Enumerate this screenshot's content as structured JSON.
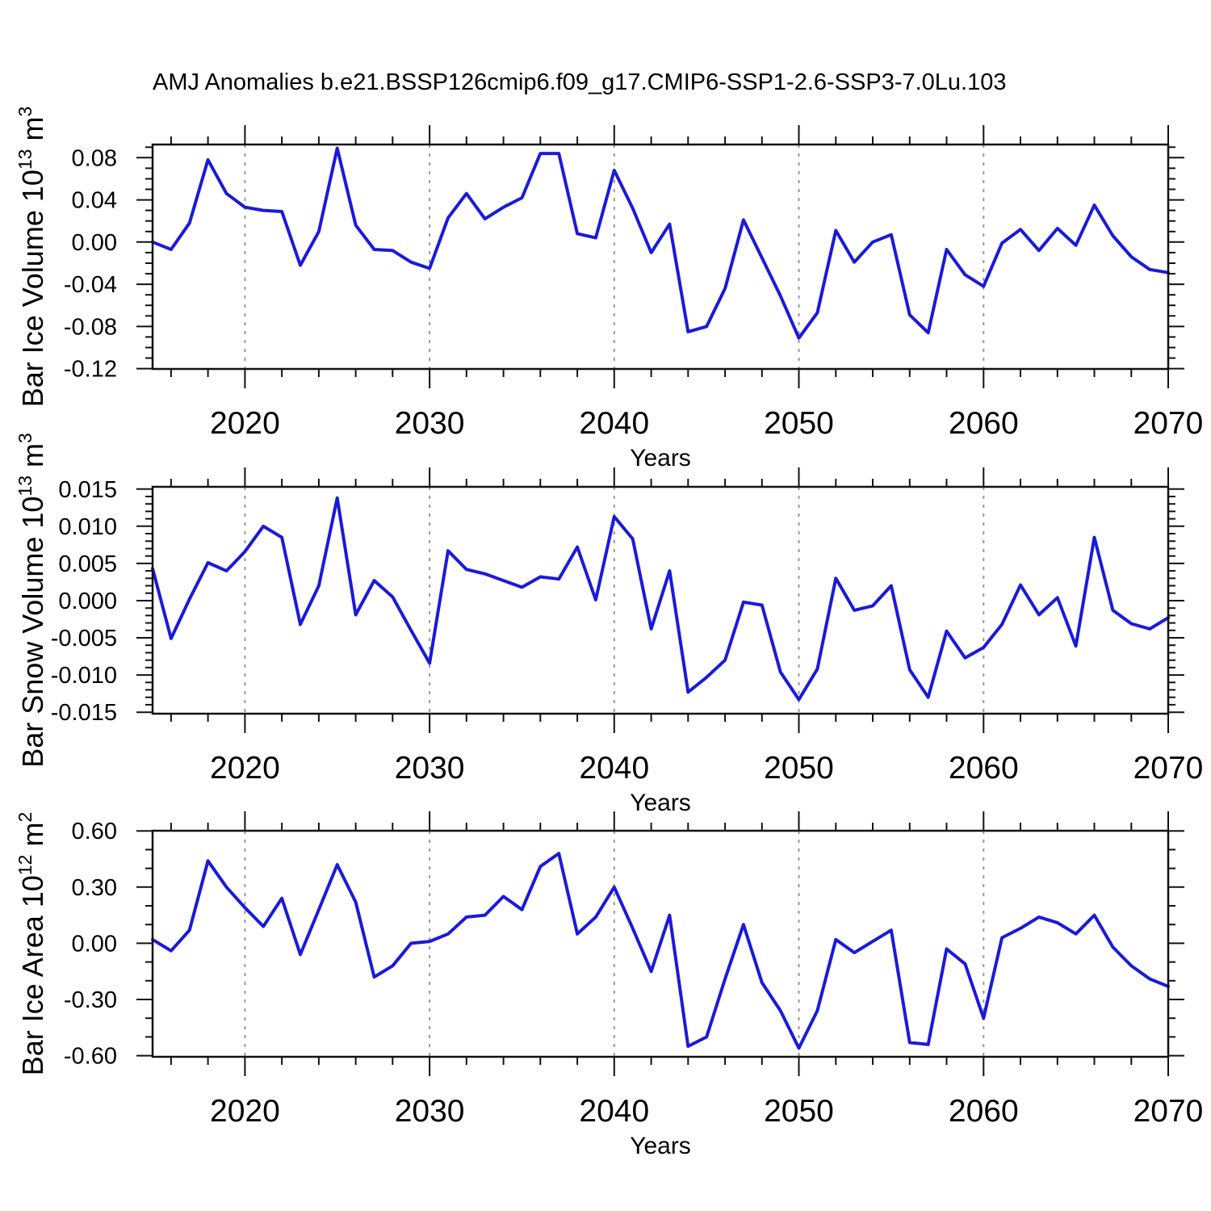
{
  "title": "AMJ Anomalies b.e21.BSSP126cmip6.f09_g17.CMIP6-SSP1-2.6-SSP3-7.0Lu.103",
  "years": [
    2015,
    2016,
    2017,
    2018,
    2019,
    2020,
    2021,
    2022,
    2023,
    2024,
    2025,
    2026,
    2027,
    2028,
    2029,
    2030,
    2031,
    2032,
    2033,
    2034,
    2035,
    2036,
    2037,
    2038,
    2039,
    2040,
    2041,
    2042,
    2043,
    2044,
    2045,
    2046,
    2047,
    2048,
    2049,
    2050,
    2051,
    2052,
    2053,
    2054,
    2055,
    2056,
    2057,
    2058,
    2059,
    2060,
    2061,
    2062,
    2063,
    2064,
    2065,
    2066,
    2067,
    2068,
    2069,
    2070
  ],
  "chart_data": [
    {
      "type": "line",
      "name": "bar-ice-volume",
      "title": "",
      "xlabel": "Years",
      "ylabel_text": "Bar Ice Volume 10^13 m^3",
      "ylabel_parts": {
        "pre": "Bar Ice Volume 10",
        "sup": "13",
        "mid": " m",
        "sup2": "3"
      },
      "xlim": [
        2015,
        2070
      ],
      "ylim": [
        -0.1203,
        0.0925
      ],
      "x_tick_labels": [
        "2020",
        "2030",
        "2040",
        "2050",
        "2060",
        "2070"
      ],
      "x_tick_values": [
        2020,
        2030,
        2040,
        2050,
        2060,
        2070
      ],
      "grid_years": [
        2020,
        2030,
        2040,
        2050,
        2060
      ],
      "y_tick_labels": [
        "0.08",
        "0.04",
        "0.00",
        "-0.04",
        "-0.08",
        "-0.12"
      ],
      "y_tick_values": [
        0.08,
        0.04,
        0.0,
        -0.04,
        -0.08,
        -0.12
      ],
      "y_minor_step": 0.01,
      "x_minor_step": 2,
      "grid": "vertical-dashed",
      "legend_position": "none",
      "values": [
        0.0,
        -0.007,
        0.018,
        0.078,
        0.046,
        0.033,
        0.03,
        0.029,
        -0.022,
        0.01,
        0.089,
        0.016,
        -0.007,
        -0.008,
        -0.019,
        -0.025,
        0.023,
        0.046,
        0.022,
        0.033,
        0.042,
        0.084,
        0.084,
        0.008,
        0.004,
        0.068,
        0.032,
        -0.01,
        0.017,
        -0.085,
        -0.08,
        -0.044,
        0.021,
        -0.015,
        -0.051,
        -0.091,
        -0.067,
        0.011,
        -0.019,
        0.0,
        0.007,
        -0.069,
        -0.086,
        -0.007,
        -0.031,
        -0.042,
        -0.001,
        0.012,
        -0.008,
        0.013,
        -0.003,
        0.035,
        0.006,
        -0.014,
        -0.026,
        -0.029
      ]
    },
    {
      "type": "line",
      "name": "bar-snow-volume",
      "title": "",
      "xlabel": "Years",
      "ylabel_text": "Bar Snow Volume 10^13 m^3",
      "ylabel_parts": {
        "pre": "Bar Snow Volume 10",
        "sup": "13",
        "mid": " m",
        "sup2": "3"
      },
      "xlim": [
        2015,
        2070
      ],
      "ylim": [
        -0.0152,
        0.0153
      ],
      "x_tick_labels": [
        "2020",
        "2030",
        "2040",
        "2050",
        "2060",
        "2070"
      ],
      "x_tick_values": [
        2020,
        2030,
        2040,
        2050,
        2060,
        2070
      ],
      "grid_years": [
        2020,
        2030,
        2040,
        2050,
        2060
      ],
      "y_tick_labels": [
        "0.015",
        "0.010",
        "0.005",
        "0.000",
        "-0.005",
        "-0.010",
        "-0.015"
      ],
      "y_tick_values": [
        0.015,
        0.01,
        0.005,
        0.0,
        -0.005,
        -0.01,
        -0.015
      ],
      "y_minor_step": 0.001,
      "x_minor_step": 2,
      "grid": "vertical-dashed",
      "legend_position": "none",
      "values": [
        0.0043,
        -0.0051,
        0.0002,
        0.0051,
        0.004,
        0.0066,
        0.01,
        0.0085,
        -0.0032,
        0.002,
        0.0138,
        -0.0019,
        0.0027,
        0.0005,
        -0.004,
        -0.0084,
        0.0067,
        0.0042,
        0.0036,
        0.0027,
        0.0018,
        0.0032,
        0.0029,
        0.0072,
        0.0001,
        0.0113,
        0.0083,
        -0.0038,
        0.004,
        -0.0123,
        -0.0103,
        -0.008,
        -0.0002,
        -0.0006,
        -0.0096,
        -0.0133,
        -0.0092,
        0.003,
        -0.0013,
        -0.0007,
        0.002,
        -0.0093,
        -0.013,
        -0.0041,
        -0.0077,
        -0.0063,
        -0.0032,
        0.0021,
        -0.0019,
        0.0004,
        -0.0061,
        0.0085,
        -0.0013,
        -0.0031,
        -0.0038,
        -0.0023
      ]
    },
    {
      "type": "line",
      "name": "bar-ice-area",
      "title": "",
      "xlabel": "Years",
      "ylabel_text": "Bar Ice Area 10^12 m^2",
      "ylabel_parts": {
        "pre": "Bar Ice Area 10",
        "sup": "12",
        "mid": " m",
        "sup2": "2"
      },
      "xlim": [
        2015,
        2070
      ],
      "ylim": [
        -0.606,
        0.601
      ],
      "x_tick_labels": [
        "2020",
        "2030",
        "2040",
        "2050",
        "2060",
        "2070"
      ],
      "x_tick_values": [
        2020,
        2030,
        2040,
        2050,
        2060,
        2070
      ],
      "grid_years": [
        2020,
        2030,
        2040,
        2050,
        2060
      ],
      "y_tick_labels": [
        "0.60",
        "0.30",
        "0.00",
        "-0.30",
        "-0.60"
      ],
      "y_tick_values": [
        0.6,
        0.3,
        0.0,
        -0.3,
        -0.6
      ],
      "y_minor_step": 0.1,
      "x_minor_step": 2,
      "grid": "vertical-dashed",
      "legend_position": "none",
      "values": [
        0.02,
        -0.04,
        0.07,
        0.44,
        0.3,
        0.19,
        0.09,
        0.24,
        -0.06,
        0.18,
        0.42,
        0.22,
        -0.18,
        -0.12,
        0.0,
        0.01,
        0.05,
        0.14,
        0.15,
        0.25,
        0.18,
        0.41,
        0.48,
        0.05,
        0.14,
        0.3,
        0.08,
        -0.15,
        0.15,
        -0.55,
        -0.5,
        -0.19,
        0.1,
        -0.21,
        -0.36,
        -0.56,
        -0.36,
        0.02,
        -0.05,
        0.01,
        0.07,
        -0.53,
        -0.54,
        -0.03,
        -0.11,
        -0.4,
        0.03,
        0.08,
        0.14,
        0.11,
        0.05,
        0.15,
        -0.02,
        -0.12,
        -0.19,
        -0.23
      ]
    }
  ],
  "style": {
    "line_color": "#1a1ada",
    "grid_color": "#999999",
    "axis_color": "#111111",
    "background": "#ffffff",
    "text_color": "#000000"
  }
}
